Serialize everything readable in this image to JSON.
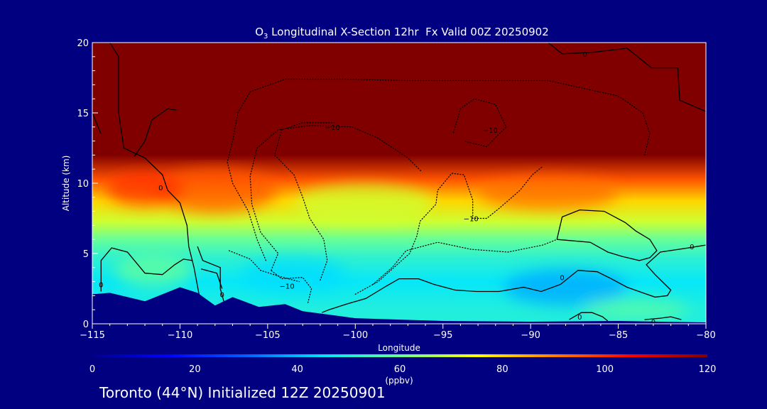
{
  "chart_data": {
    "type": "heatmap",
    "title": "O3 Longitudinal X-Section 12hr  Fx Valid 00Z 20250902",
    "title_parts": {
      "base": "O",
      "subscript": "3",
      "rest": " Longitudinal X-Section 12hr  Fx Valid 00Z 20250902"
    },
    "xlabel": "Longitude",
    "ylabel": "Altitude (km)",
    "xlim": [
      -115,
      -80
    ],
    "ylim": [
      0,
      20
    ],
    "x_ticks": [
      -115,
      -110,
      -105,
      -100,
      -95,
      -90,
      -85,
      -80
    ],
    "x_tick_labels": [
      "−115",
      "−110",
      "−105",
      "−100",
      "−95",
      "−90",
      "−85",
      "−80"
    ],
    "y_ticks": [
      0,
      5,
      10,
      15,
      20
    ],
    "y_tick_labels": [
      "0",
      "5",
      "10",
      "15",
      "20"
    ],
    "colorbar": {
      "min": 0,
      "max": 120,
      "ticks": [
        0,
        20,
        40,
        60,
        80,
        100,
        120
      ],
      "tick_labels": [
        "0",
        "20",
        "40",
        "60",
        "80",
        "100",
        "120"
      ],
      "units": "(ppbv)"
    },
    "field_bands": [
      {
        "alt_top": 2.0,
        "ozone": 50
      },
      {
        "alt_top": 4.0,
        "ozone": 46
      },
      {
        "alt_top": 5.5,
        "ozone": 52
      },
      {
        "alt_top": 6.5,
        "ozone": 60
      },
      {
        "alt_top": 8.0,
        "ozone": 70
      },
      {
        "alt_top": 9.5,
        "ozone": 80
      },
      {
        "alt_top": 11.0,
        "ozone": 95
      },
      {
        "alt_top": 20.0,
        "ozone": 125
      }
    ],
    "terrain": [
      {
        "lon": -115,
        "alt": 2.1
      },
      {
        "lon": -114,
        "alt": 2.2
      },
      {
        "lon": -112,
        "alt": 1.6
      },
      {
        "lon": -110,
        "alt": 2.6
      },
      {
        "lon": -109,
        "alt": 2.2
      },
      {
        "lon": -108,
        "alt": 1.3
      },
      {
        "lon": -107,
        "alt": 1.9
      },
      {
        "lon": -105.5,
        "alt": 1.2
      },
      {
        "lon": -104,
        "alt": 1.4
      },
      {
        "lon": -103,
        "alt": 0.9
      },
      {
        "lon": -100,
        "alt": 0.4
      },
      {
        "lon": -95,
        "alt": 0.2
      },
      {
        "lon": -90,
        "alt": 0.15
      },
      {
        "lon": -85,
        "alt": 0.2
      },
      {
        "lon": -80,
        "alt": 0.1
      }
    ],
    "contours": [
      {
        "level": 0,
        "style": "solid",
        "points": [
          [
            -114.9,
            20
          ],
          [
            -114.0,
            20
          ],
          [
            -113.5,
            19
          ],
          [
            -113.5,
            15
          ],
          [
            -113.2,
            12.5
          ],
          [
            -112.0,
            11.8
          ],
          [
            -111.0,
            10.6
          ],
          [
            -110.7,
            9.5
          ],
          [
            -110.0,
            8.6
          ],
          [
            -109.6,
            7.0
          ],
          [
            -109.5,
            5.5
          ],
          [
            -109.2,
            4.0
          ],
          [
            -108.9,
            2.0
          ]
        ]
      },
      {
        "level": 0,
        "style": "solid",
        "points": [
          [
            -115.0,
            15.0
          ],
          [
            -114.5,
            13.5
          ]
        ]
      },
      {
        "level": 0,
        "style": "solid",
        "points": [
          [
            -112.6,
            11.9
          ],
          [
            -112.0,
            13.0
          ],
          [
            -111.6,
            14.5
          ],
          [
            -110.7,
            15.3
          ],
          [
            -110.2,
            15.2
          ]
        ]
      },
      {
        "level": 0,
        "style": "solid",
        "points": [
          [
            -109.0,
            5.5
          ],
          [
            -108.7,
            4.5
          ],
          [
            -107.7,
            4.0
          ],
          [
            -107.7,
            2.5
          ],
          [
            -107.5,
            1.6
          ]
        ]
      },
      {
        "level": 0,
        "style": "solid",
        "points": [
          [
            -108.8,
            3.9
          ],
          [
            -107.9,
            3.6
          ],
          [
            -107.6,
            2.5
          ]
        ]
      },
      {
        "level": 0,
        "style": "solid",
        "points": [
          [
            -114.5,
            2.3
          ],
          [
            -114.5,
            4.5
          ],
          [
            -113.9,
            5.4
          ],
          [
            -113.0,
            5.1
          ],
          [
            -112.0,
            3.6
          ],
          [
            -111.0,
            3.5
          ],
          [
            -110.3,
            4.2
          ],
          [
            -109.8,
            4.6
          ],
          [
            -109.3,
            4.5
          ]
        ]
      },
      {
        "level": 0,
        "style": "solid",
        "points": [
          [
            -101.9,
            0.8
          ],
          [
            -101.5,
            1.0
          ],
          [
            -100.5,
            1.4
          ],
          [
            -99.4,
            1.8
          ],
          [
            -98.2,
            2.7
          ],
          [
            -97.5,
            3.2
          ],
          [
            -96.4,
            3.2
          ],
          [
            -95.5,
            2.8
          ],
          [
            -94.3,
            2.4
          ],
          [
            -93.1,
            2.3
          ],
          [
            -91.8,
            2.3
          ],
          [
            -90.4,
            2.6
          ],
          [
            -89.4,
            2.3
          ],
          [
            -88.3,
            2.8
          ],
          [
            -87.3,
            3.8
          ],
          [
            -86.2,
            3.7
          ],
          [
            -85.4,
            3.2
          ],
          [
            -84.5,
            2.6
          ],
          [
            -83.6,
            2.2
          ],
          [
            -82.9,
            1.9
          ],
          [
            -82.2,
            2.0
          ],
          [
            -82.0,
            2.4
          ],
          [
            -82.9,
            3.5
          ],
          [
            -83.4,
            4.2
          ],
          [
            -82.6,
            5.1
          ],
          [
            -81.0,
            5.4
          ],
          [
            -80.0,
            5.6
          ]
        ]
      },
      {
        "level": 0,
        "style": "solid",
        "points": [
          [
            -88.5,
            6.0
          ],
          [
            -88.2,
            7.6
          ],
          [
            -87.2,
            8.1
          ],
          [
            -85.8,
            8.0
          ],
          [
            -84.6,
            7.2
          ],
          [
            -84.0,
            6.6
          ],
          [
            -83.2,
            6.0
          ],
          [
            -82.8,
            5.2
          ],
          [
            -83.2,
            4.7
          ],
          [
            -83.8,
            4.5
          ],
          [
            -84.8,
            4.8
          ],
          [
            -85.6,
            5.1
          ],
          [
            -86.6,
            5.8
          ],
          [
            -88.5,
            6.0
          ]
        ]
      },
      {
        "level": 0,
        "style": "solid",
        "points": [
          [
            -87.8,
            0.3
          ],
          [
            -87.1,
            0.8
          ],
          [
            -86.5,
            0.8
          ],
          [
            -85.9,
            0.5
          ],
          [
            -85.6,
            0.2
          ]
        ]
      },
      {
        "level": 0,
        "style": "solid",
        "points": [
          [
            -83.5,
            0.3
          ],
          [
            -82.6,
            0.4
          ],
          [
            -82.0,
            0.5
          ],
          [
            -81.4,
            0.3
          ]
        ]
      },
      {
        "level": 0,
        "style": "solid",
        "points": [
          [
            -89.0,
            20
          ],
          [
            -88.2,
            19.2
          ],
          [
            -86.5,
            19.3
          ],
          [
            -84.5,
            19.6
          ],
          [
            -83.1,
            18.2
          ],
          [
            -81.6,
            18.2
          ],
          [
            -81.5,
            15.9
          ],
          [
            -80.0,
            15.1
          ]
        ]
      },
      {
        "level": -10,
        "style": "dotted",
        "points": [
          [
            -105.1,
            4.5
          ],
          [
            -105.6,
            6.0
          ],
          [
            -106.1,
            8.0
          ],
          [
            -107.0,
            10.0
          ],
          [
            -107.3,
            11.5
          ],
          [
            -107.0,
            13.0
          ],
          [
            -106.7,
            15.0
          ],
          [
            -106.0,
            16.5
          ],
          [
            -104.0,
            17.4
          ],
          [
            -100.5,
            17.4
          ],
          [
            -97.0,
            17.3
          ],
          [
            -93.0,
            17.3
          ],
          [
            -89.0,
            17.3
          ],
          [
            -85.0,
            16.2
          ],
          [
            -83.6,
            15.0
          ],
          [
            -83.2,
            13.5
          ],
          [
            -83.5,
            12.0
          ]
        ]
      },
      {
        "level": -10,
        "style": "dotted",
        "points": [
          [
            -104.8,
            3.8
          ],
          [
            -104.4,
            5.0
          ],
          [
            -105.4,
            6.5
          ],
          [
            -105.9,
            8.5
          ],
          [
            -106.0,
            10.5
          ],
          [
            -105.6,
            12.5
          ],
          [
            -104.4,
            13.8
          ],
          [
            -102.6,
            14.1
          ],
          [
            -100.2,
            14.0
          ],
          [
            -98.7,
            13.2
          ],
          [
            -97.0,
            11.8
          ],
          [
            -96.2,
            10.8
          ]
        ]
      },
      {
        "level": -10,
        "style": "dotted",
        "points": [
          [
            -102.0,
            3.1
          ],
          [
            -101.6,
            4.5
          ],
          [
            -101.8,
            6.0
          ],
          [
            -102.6,
            7.5
          ],
          [
            -103.0,
            9.0
          ],
          [
            -103.5,
            10.6
          ],
          [
            -104.6,
            12.0
          ],
          [
            -104.2,
            13.8
          ],
          [
            -103.0,
            14.3
          ],
          [
            -101.2,
            14.3
          ]
        ]
      },
      {
        "level": -10,
        "style": "dotted",
        "points": [
          [
            -100.0,
            2.1
          ],
          [
            -98.7,
            3.0
          ],
          [
            -96.9,
            5.0
          ],
          [
            -96.5,
            6.2
          ],
          [
            -96.3,
            7.3
          ],
          [
            -95.4,
            8.5
          ],
          [
            -95.3,
            9.5
          ],
          [
            -94.5,
            10.7
          ],
          [
            -93.8,
            10.6
          ],
          [
            -93.3,
            8.8
          ],
          [
            -93.3,
            7.5
          ],
          [
            -92.5,
            7.5
          ],
          [
            -91.8,
            8.2
          ],
          [
            -90.6,
            9.5
          ],
          [
            -89.9,
            10.6
          ],
          [
            -89.3,
            11.2
          ]
        ]
      },
      {
        "level": -10,
        "style": "dotted",
        "points": [
          [
            -99.0,
            2.8
          ],
          [
            -97.9,
            4.0
          ],
          [
            -97.1,
            5.2
          ],
          [
            -95.3,
            5.8
          ],
          [
            -93.4,
            5.3
          ],
          [
            -91.3,
            5.1
          ],
          [
            -89.3,
            5.6
          ],
          [
            -88.5,
            6.0
          ]
        ]
      },
      {
        "level": -10,
        "style": "dotted",
        "points": [
          [
            -94.4,
            13.6
          ],
          [
            -94.0,
            15.3
          ],
          [
            -93.2,
            16.0
          ],
          [
            -92.0,
            15.6
          ],
          [
            -91.4,
            14.0
          ],
          [
            -92.5,
            12.6
          ],
          [
            -93.8,
            13.0
          ]
        ]
      },
      {
        "level": -10,
        "style": "dotted",
        "points": [
          [
            -102.7,
            1.5
          ],
          [
            -102.5,
            2.5
          ],
          [
            -103.0,
            3.3
          ],
          [
            -104.2,
            3.2
          ],
          [
            -104.8,
            3.8
          ]
        ]
      },
      {
        "level": -10,
        "style": "dotted",
        "points": [
          [
            -107.2,
            5.2
          ],
          [
            -106.0,
            4.6
          ],
          [
            -105.4,
            3.8
          ],
          [
            -104.4,
            3.4
          ],
          [
            -103.2,
            3.0
          ]
        ]
      }
    ],
    "contour_labels": [
      {
        "text": "0",
        "lon": -111.1,
        "alt": 9.7
      },
      {
        "text": "0",
        "lon": -114.5,
        "alt": 2.8
      },
      {
        "text": "0",
        "lon": -107.6,
        "alt": 2.1
      },
      {
        "text": "0",
        "lon": -88.2,
        "alt": 3.3
      },
      {
        "text": "0",
        "lon": -87.2,
        "alt": 0.5
      },
      {
        "text": "0",
        "lon": -83.0,
        "alt": 0.15
      },
      {
        "text": "0",
        "lon": -80.8,
        "alt": 5.5
      },
      {
        "text": "0",
        "lon": -86.9,
        "alt": 19.2
      },
      {
        "text": "−10",
        "lon": -101.3,
        "alt": 14.0
      },
      {
        "text": "−10",
        "lon": -92.3,
        "alt": 13.8
      },
      {
        "text": "−10",
        "lon": -93.4,
        "alt": 7.5
      },
      {
        "text": "−10",
        "lon": -103.9,
        "alt": 2.7
      }
    ]
  },
  "footer": "Toronto (44°N) Initialized 12Z 20250901",
  "colors": {
    "background": "#000080",
    "terrain": "#000080",
    "contour": "#000000",
    "text": "#ffffff",
    "colorbar_stops": [
      "#00008c",
      "#0000ff",
      "#0060ff",
      "#00e5ff",
      "#66ff99",
      "#ffff00",
      "#ff8000",
      "#ff0000",
      "#800000"
    ]
  }
}
